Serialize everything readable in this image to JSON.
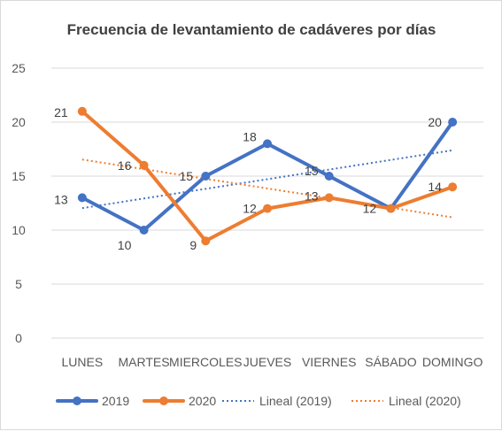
{
  "chart_data": {
    "type": "line",
    "title": "Frecuencia de levantamiento de cadáveres por días",
    "xlabel": "",
    "ylabel": "",
    "ylim": [
      0,
      25
    ],
    "yticks": [
      0,
      5,
      10,
      15,
      20,
      25
    ],
    "categories": [
      "LUNES",
      "MARTES",
      "MIERCOLES",
      "JUEVES",
      "VIERNES",
      "SÁBADO",
      "DOMINGO"
    ],
    "grid": true,
    "legend_position": "bottom",
    "series": [
      {
        "name": "2019",
        "values": [
          13,
          10,
          15,
          18,
          15,
          12,
          20
        ],
        "color": "#4472c4"
      },
      {
        "name": "2020",
        "values": [
          21,
          16,
          9,
          12,
          13,
          12,
          14
        ],
        "color": "#ed7d31"
      }
    ],
    "trendlines": [
      {
        "name": "Lineal (2019)",
        "of": "2019",
        "style": "dotted",
        "color": "#4472c4"
      },
      {
        "name": "Lineal (2020)",
        "of": "2020",
        "style": "dotted",
        "color": "#ed7d31"
      }
    ]
  }
}
